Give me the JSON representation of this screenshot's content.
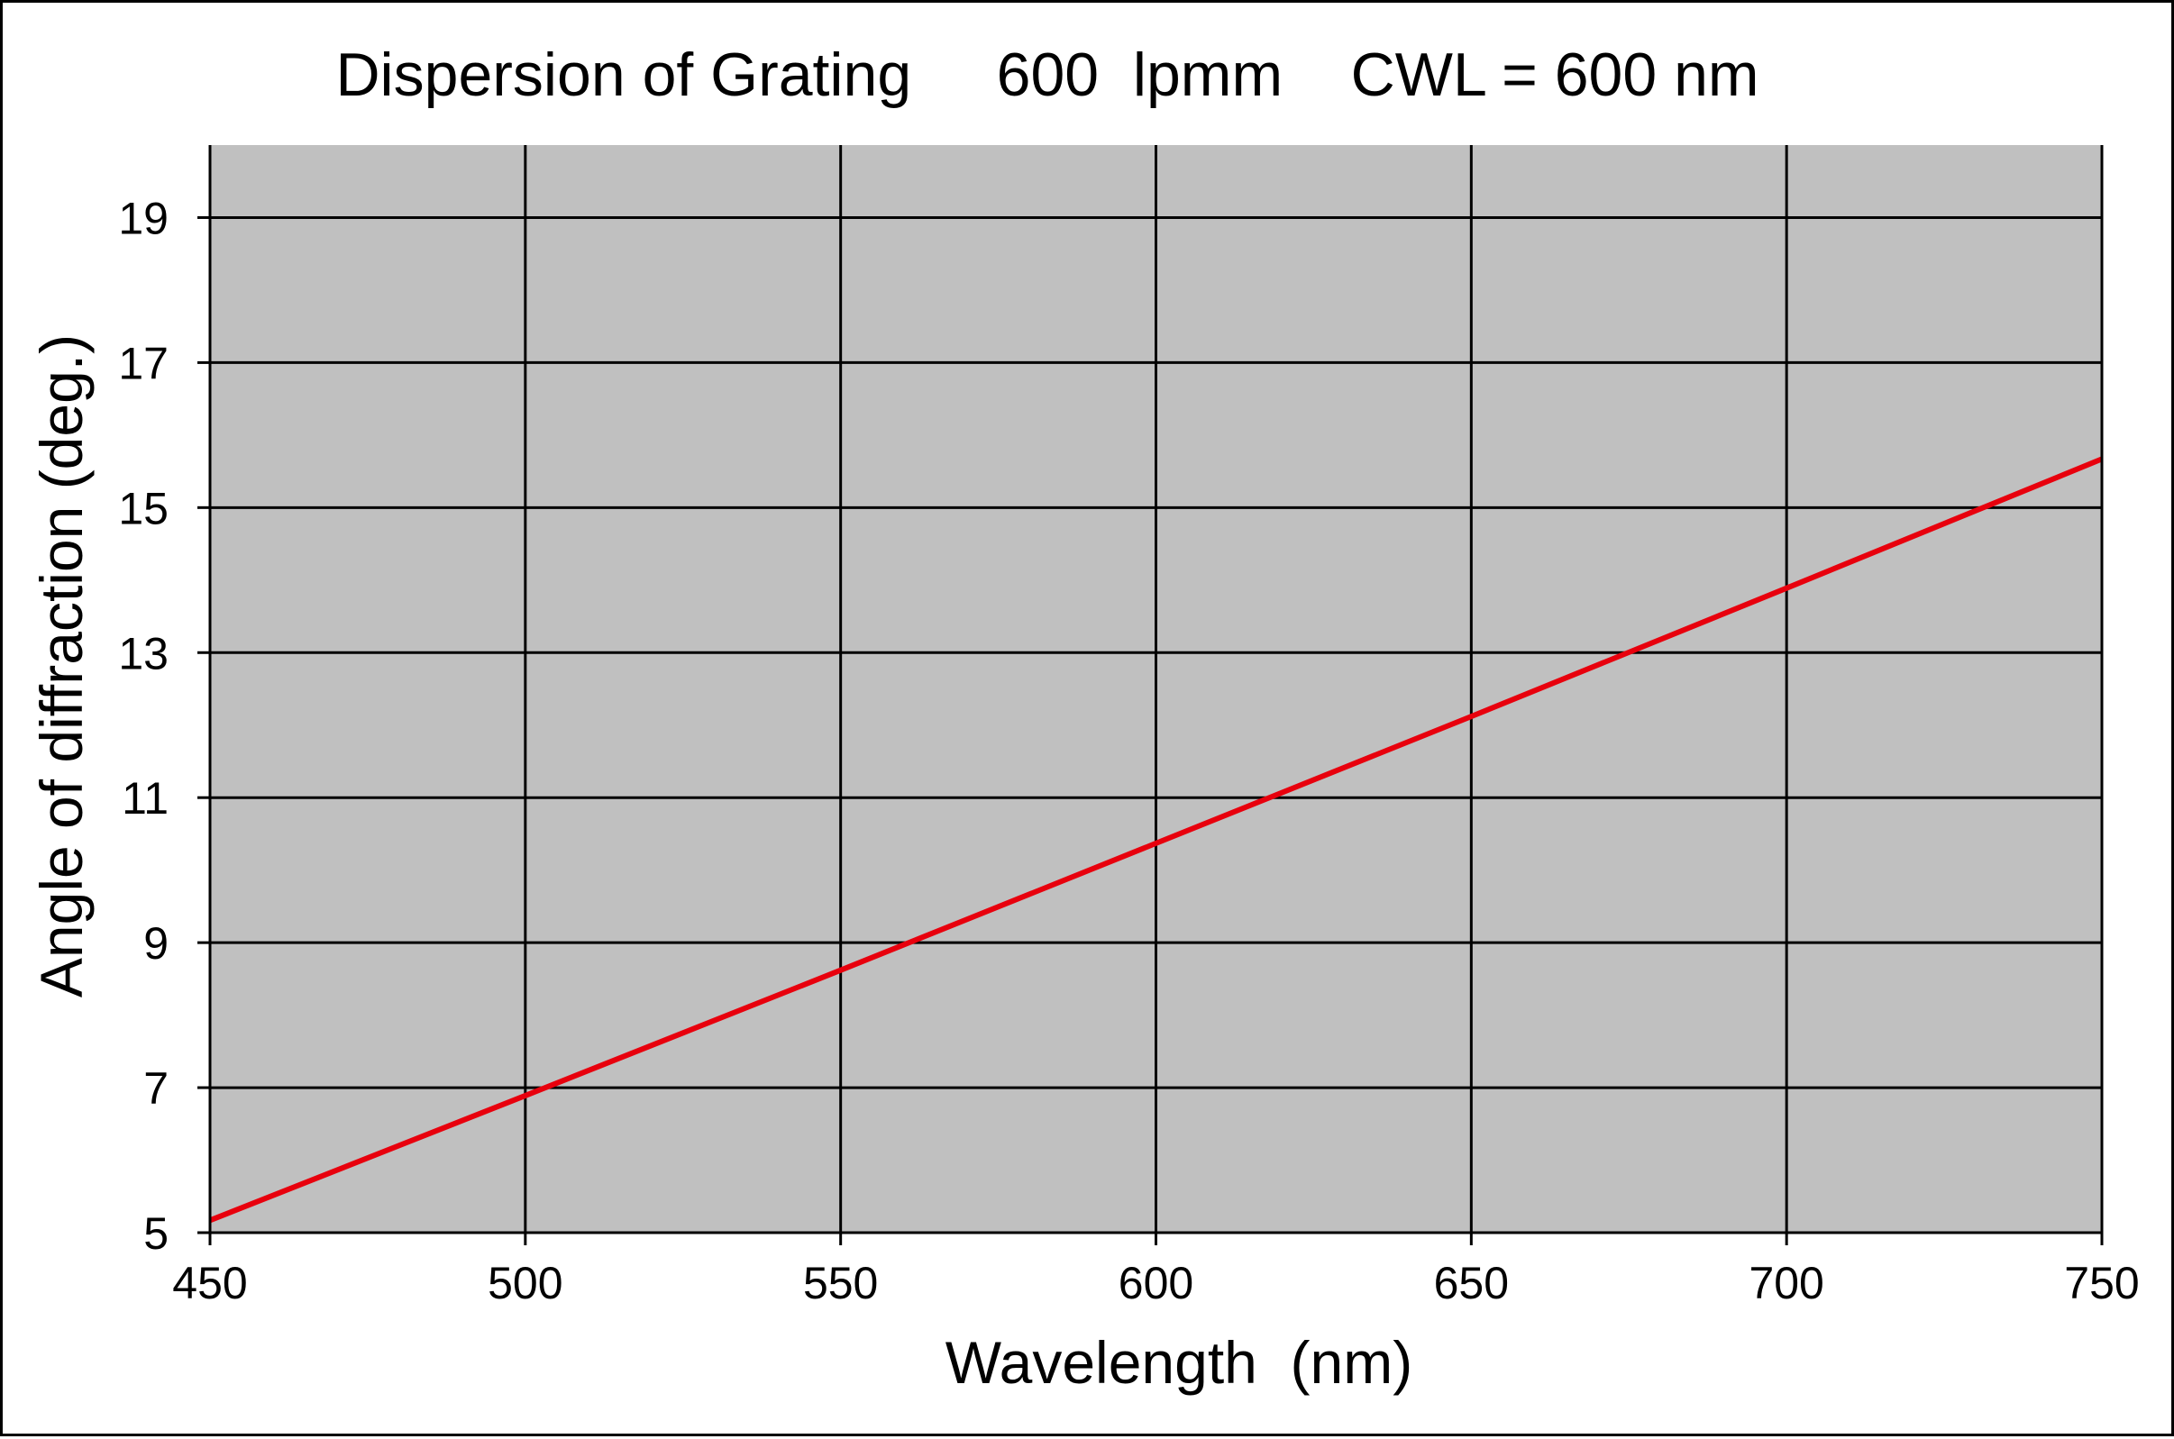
{
  "chart_data": {
    "type": "line",
    "title": "Dispersion of Grating     600  lpmm    CWL = 600 nm",
    "xlabel": "Wavelength  (nm)",
    "ylabel": "Angle of diffraction (deg.)",
    "xlim": [
      450,
      750
    ],
    "ylim": [
      5,
      20
    ],
    "xticks": [
      450,
      500,
      550,
      600,
      650,
      700,
      750
    ],
    "yticks": [
      5,
      7,
      9,
      11,
      13,
      15,
      17,
      19
    ],
    "grid": true,
    "plot_background": "#c0c0c0",
    "grid_color": "#000000",
    "series": [
      {
        "name": "Angle of diffraction",
        "color": "#e8000d",
        "x": [
          450,
          500,
          550,
          600,
          650,
          700,
          750
        ],
        "y": [
          5.17,
          6.89,
          8.62,
          10.37,
          12.12,
          13.89,
          15.67
        ]
      }
    ]
  }
}
